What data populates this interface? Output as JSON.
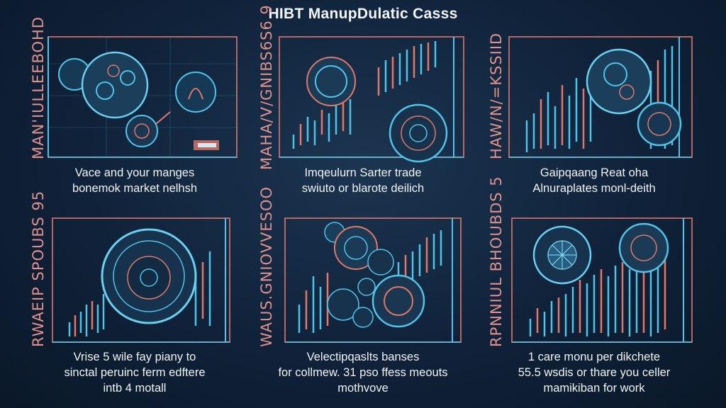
{
  "title": "HIBT ManupDulatic Casss",
  "palette": {
    "background": "#10223a",
    "cyan": "#4fc3e8",
    "salmon": "#e0786a",
    "white": "#eef3f8"
  },
  "panels": [
    {
      "side_label": "MAN'IULLEEBOHD",
      "caption_lines": [
        "Vace and your manges",
        "bonemok market nelhsh"
      ]
    },
    {
      "side_label": "MAHA/V/GNIBS6S6 9",
      "caption_lines": [
        "Imqeulurn Sarter trade",
        "swiuto or blarote deilich"
      ]
    },
    {
      "side_label": "HAW/N/=KSSIID",
      "caption_lines": [
        "Gaipqaang Reat oha",
        "Alnuraplates monl-deith"
      ]
    },
    {
      "side_label": "RWAEIP SPOUBS 95",
      "caption_lines": [
        "Vrise 5 wile fay piany to",
        "sinctal peruinc ferm edftere",
        "intb 4 motall"
      ]
    },
    {
      "side_label": "WAUS.GNIOVVESOO",
      "caption_lines": [
        "Velectipqaslts banses",
        "for collmew. 31 pso ffess meouts",
        "mothvove"
      ]
    },
    {
      "side_label": "RPNNIUL BHOUBDS 5",
      "caption_lines": [
        "1 care monu per dikchete",
        "55.5 wsdis or thare you celler",
        "mamikiban for work"
      ]
    }
  ]
}
